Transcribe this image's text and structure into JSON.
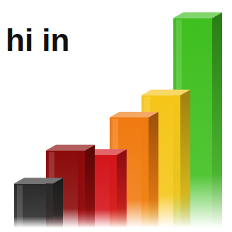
{
  "chart_data": {
    "type": "bar",
    "title": "hi in",
    "categories": [
      null,
      null,
      null,
      null,
      null,
      null
    ],
    "values": [
      20,
      35,
      33,
      50,
      60,
      95
    ],
    "colors": [
      "#2a2a2a",
      "#8b0a0a",
      "#d3141a",
      "#f07a10",
      "#f5c518",
      "#3fbf1f"
    ],
    "ylim": [
      0,
      100
    ],
    "tick_labels": false,
    "grid": false
  }
}
